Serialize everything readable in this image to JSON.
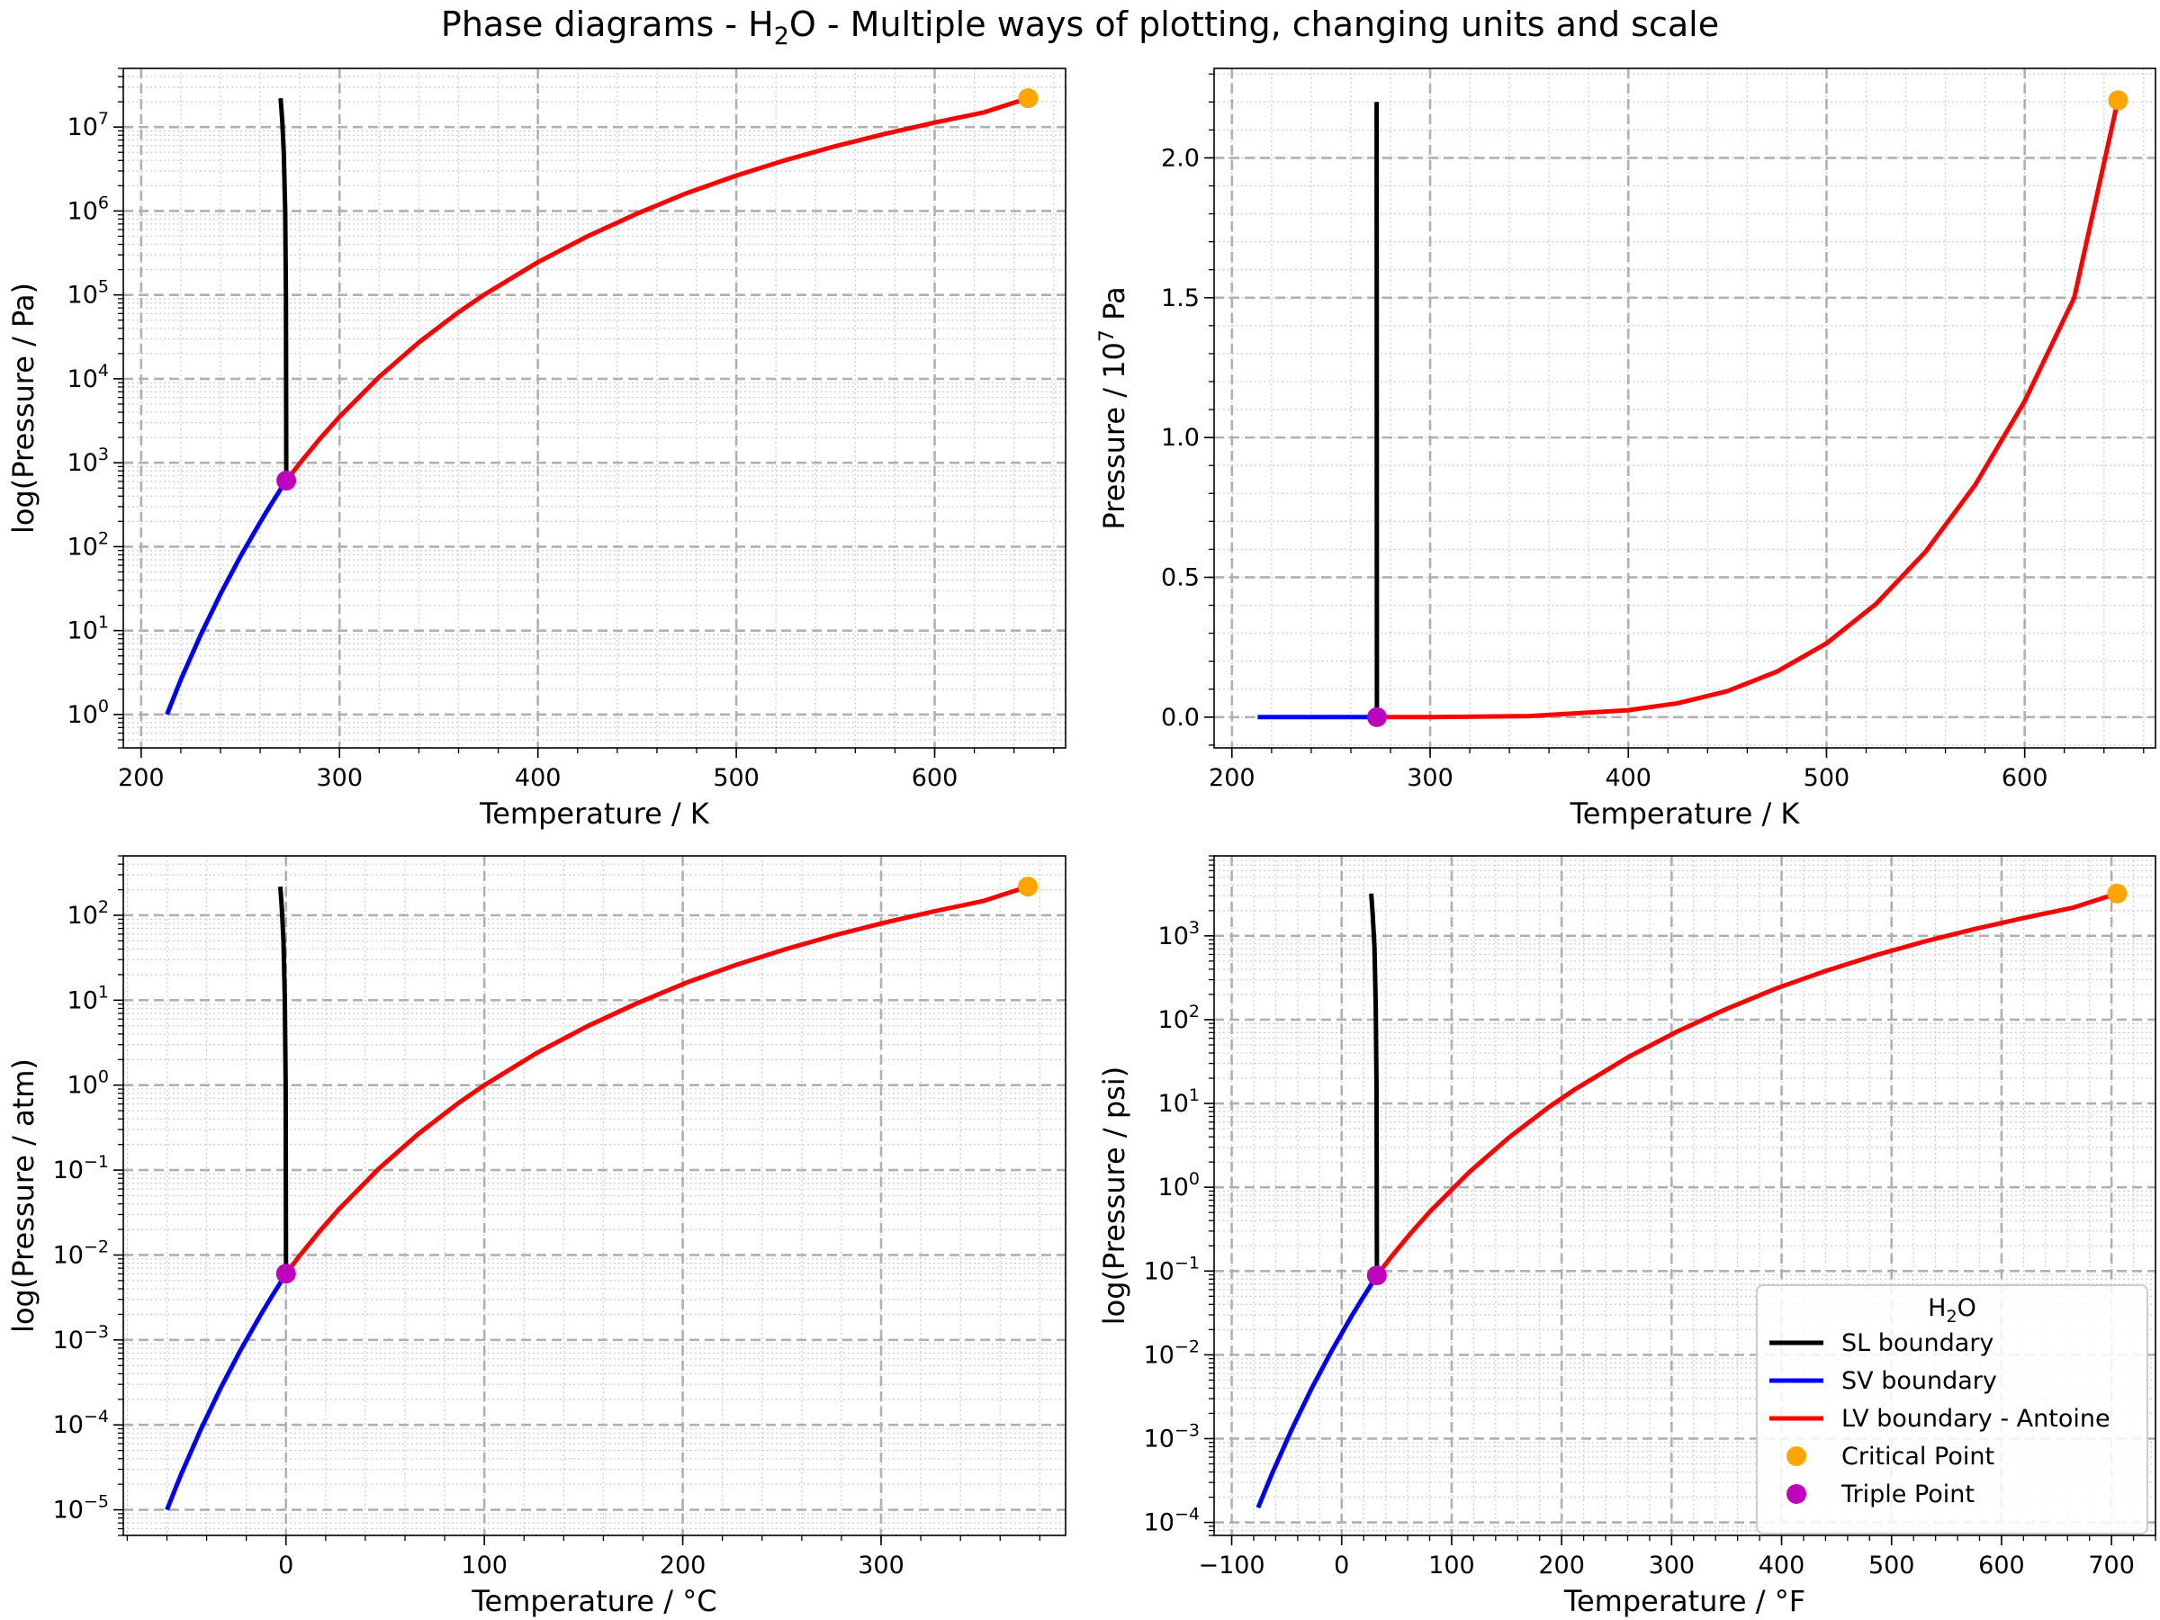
{
  "figure": {
    "title_prefix": "Phase diagrams - H",
    "title_sub": "2",
    "title_suffix": "O - Multiple ways of plotting, changing units and scale"
  },
  "colors": {
    "sl": "#000000",
    "sv": "#0000ff",
    "lv": "#ff0000",
    "critical": "#ffa500",
    "triple": "#bf00bf",
    "grid_major": "#b0b0b0",
    "grid_minor": "#cfcfcf"
  },
  "legend": {
    "title_prefix": "H",
    "title_sub": "2",
    "title_suffix": "O",
    "entries": [
      {
        "label": "SL boundary",
        "kind": "line",
        "series": "sl"
      },
      {
        "label": "SV boundary",
        "kind": "line",
        "series": "sv"
      },
      {
        "label": "LV boundary - Antoine",
        "kind": "line",
        "series": "lv"
      },
      {
        "label": "Critical Point",
        "kind": "marker",
        "series": "critical"
      },
      {
        "label": "Triple Point",
        "kind": "marker",
        "series": "triple"
      }
    ],
    "placement": "lower-right of bottom-right panel"
  },
  "chart_data": [
    {
      "type": "line",
      "panel": "top-left",
      "xscale": "linear",
      "yscale": "log",
      "xlabel": "Temperature / K",
      "ylabel": "log(Pressure / Pa)",
      "xlim": [
        191,
        666
      ],
      "ylim": [
        0.4,
        50000000.0
      ],
      "xticks": [
        200,
        300,
        400,
        500,
        600
      ],
      "ytick_labels": [
        "10^0",
        "10^1",
        "10^2",
        "10^3",
        "10^4",
        "10^5",
        "10^6",
        "10^7"
      ],
      "series": [
        {
          "name": "SL boundary",
          "key": "sl",
          "x": [
            273.16,
            273.0,
            272.6,
            271.9,
            271.1,
            270.3
          ],
          "y": [
            611.7,
            100000.0,
            1000000.0,
            5000000.0,
            12000000.0,
            22000000.0
          ]
        },
        {
          "name": "SV boundary",
          "key": "sv",
          "x": [
            213,
            220,
            230,
            240,
            250,
            260,
            265,
            270,
            273.16
          ],
          "y": [
            1.0,
            2.6,
            8.9,
            27.3,
            76.0,
            195.8,
            306.0,
            470.0,
            611.7
          ]
        },
        {
          "name": "LV boundary - Antoine",
          "key": "lv",
          "x": [
            273.16,
            280,
            290,
            300,
            320,
            340,
            360,
            373.15,
            400,
            425,
            450,
            475,
            500,
            525,
            550,
            575,
            600,
            625,
            647
          ],
          "y": [
            611.7,
            990,
            1919,
            3537,
            10550,
            27200,
            62200,
            101325,
            245600,
            500000,
            932000,
            1630000.0,
            2640000.0,
            4050000.0,
            5920000.0,
            8300000.0,
            11300000.0,
            15000000.0,
            22060000.0
          ]
        }
      ],
      "points": [
        {
          "name": "Critical Point",
          "key": "critical",
          "x": 647.1,
          "y": 22064000.0
        },
        {
          "name": "Triple Point",
          "key": "triple",
          "x": 273.16,
          "y": 611.7
        }
      ]
    },
    {
      "type": "line",
      "panel": "top-right",
      "xscale": "linear",
      "yscale": "linear",
      "xlabel": "Temperature / K",
      "ylabel_prefix": "Pressure / 10",
      "ylabel_sup": "7",
      "ylabel_suffix": " Pa",
      "xlim": [
        191,
        666
      ],
      "ylim": [
        -0.11,
        2.32
      ],
      "xticks": [
        200,
        300,
        400,
        500,
        600
      ],
      "yticks": [
        0.0,
        0.5,
        1.0,
        1.5,
        2.0
      ],
      "ytick_labels": [
        "0.0",
        "0.5",
        "1.0",
        "1.5",
        "2.0"
      ],
      "series": [
        {
          "name": "SL boundary",
          "key": "sl",
          "x": [
            273.16,
            273.1,
            273.05,
            273.0
          ],
          "y": [
            0.0,
            0.7,
            1.5,
            2.2
          ]
        },
        {
          "name": "SV boundary",
          "key": "sv",
          "x": [
            213,
            273.16
          ],
          "y": [
            0.0,
            0.0
          ]
        },
        {
          "name": "LV boundary - Antoine",
          "key": "lv",
          "x": [
            273.16,
            300,
            350,
            400,
            425,
            450,
            475,
            500,
            525,
            550,
            575,
            600,
            625,
            647
          ],
          "y": [
            0.0001,
            0.0004,
            0.004,
            0.025,
            0.05,
            0.093,
            0.163,
            0.264,
            0.405,
            0.592,
            0.83,
            1.13,
            1.5,
            2.206
          ]
        }
      ],
      "points": [
        {
          "name": "Critical Point",
          "key": "critical",
          "x": 647.1,
          "y": 2.206
        },
        {
          "name": "Triple Point",
          "key": "triple",
          "x": 273.16,
          "y": 0.0
        }
      ]
    },
    {
      "type": "line",
      "panel": "bottom-left",
      "xscale": "linear",
      "yscale": "log",
      "xlabel": "Temperature / °C",
      "ylabel": "log(Pressure / atm)",
      "xlim": [
        -82,
        393
      ],
      "ylim": [
        5e-06,
        500.0
      ],
      "xticks": [
        0,
        100,
        200,
        300
      ],
      "ytick_labels": [
        "10^-5",
        "10^-4",
        "10^-3",
        "10^-2",
        "10^-1",
        "10^0",
        "10^1",
        "10^2"
      ],
      "series": [
        {
          "name": "SL boundary",
          "key": "sl",
          "x": [
            0.01,
            -0.15,
            -0.55,
            -1.25,
            -2.05,
            -2.85
          ],
          "y": [
            0.006037,
            0.987,
            9.87,
            49.3,
            118.4,
            217.1
          ]
        },
        {
          "name": "SV boundary",
          "key": "sv",
          "x": [
            -60,
            -53,
            -43,
            -33,
            -23,
            -13,
            -8,
            -3,
            0.01
          ],
          "y": [
            1e-05,
            2.57e-05,
            8.78e-05,
            0.000269,
            0.00075,
            0.00193,
            0.00302,
            0.00464,
            0.006037
          ]
        },
        {
          "name": "LV boundary - Antoine",
          "key": "lv",
          "x": [
            0.01,
            6.85,
            16.85,
            26.85,
            46.85,
            66.85,
            86.85,
            100,
            126.85,
            151.85,
            176.85,
            201.85,
            226.85,
            251.85,
            276.85,
            301.85,
            326.85,
            351.85,
            373.95
          ],
          "y": [
            0.006037,
            0.00977,
            0.01894,
            0.0349,
            0.1041,
            0.2684,
            0.6139,
            1.0,
            2.424,
            4.935,
            9.198,
            16.09,
            26.05,
            39.97,
            58.43,
            81.92,
            111.5,
            148.0,
            217.7
          ]
        }
      ],
      "points": [
        {
          "name": "Critical Point",
          "key": "critical",
          "x": 373.95,
          "y": 217.7
        },
        {
          "name": "Triple Point",
          "key": "triple",
          "x": 0.01,
          "y": 0.006037
        }
      ]
    },
    {
      "type": "line",
      "panel": "bottom-right",
      "xscale": "linear",
      "yscale": "log",
      "xlabel": "Temperature / °F",
      "ylabel": "log(Pressure / psi)",
      "xlim": [
        -116,
        740
      ],
      "ylim": [
        7e-05,
        9000.0
      ],
      "xticks": [
        -100,
        0,
        100,
        200,
        300,
        400,
        500,
        600,
        700
      ],
      "xtick_labels": [
        "−100",
        "0",
        "100",
        "200",
        "300",
        "400",
        "500",
        "600",
        "700"
      ],
      "ytick_labels": [
        "10^-4",
        "10^-3",
        "10^-2",
        "10^-1",
        "10^0",
        "10^1",
        "10^2",
        "10^3"
      ],
      "series": [
        {
          "name": "SL boundary",
          "key": "sl",
          "x": [
            32.02,
            31.7,
            31.0,
            29.8,
            28.3,
            26.9
          ],
          "y": [
            0.0887,
            14.5,
            145,
            725,
            1740,
            3200
          ]
        },
        {
          "name": "SV boundary",
          "key": "sv",
          "x": [
            -76,
            -63.4,
            -45.4,
            -27.4,
            -9.4,
            8.6,
            17.6,
            26.6,
            32.02
          ],
          "y": [
            0.00015,
            0.00038,
            0.00129,
            0.00396,
            0.011,
            0.0284,
            0.0444,
            0.0682,
            0.0887
          ]
        },
        {
          "name": "LV boundary - Antoine",
          "key": "lv",
          "x": [
            32.02,
            44.3,
            62.3,
            80.3,
            116.3,
            152.3,
            188.3,
            212,
            260.3,
            305.3,
            350.3,
            395.3,
            440.3,
            485.3,
            530.3,
            575.3,
            620.3,
            665.3,
            705.1
          ],
          "y": [
            0.0887,
            0.1436,
            0.2783,
            0.513,
            1.53,
            3.945,
            9.02,
            14.7,
            35.6,
            72.5,
            135.2,
            236.4,
            383,
            587,
            859,
            1204,
            1639,
            2175,
            3200
          ]
        }
      ],
      "points": [
        {
          "name": "Critical Point",
          "key": "critical",
          "x": 705.1,
          "y": 3200
        },
        {
          "name": "Triple Point",
          "key": "triple",
          "x": 32.02,
          "y": 0.0887
        }
      ]
    }
  ]
}
